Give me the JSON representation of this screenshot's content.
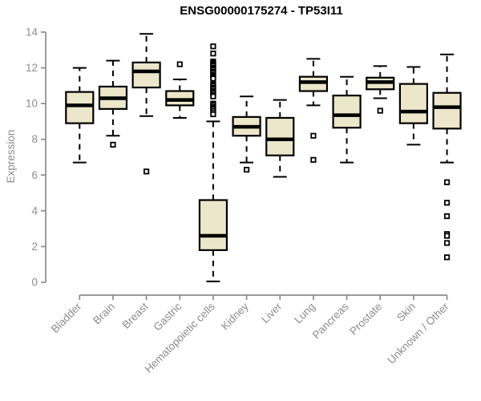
{
  "chart_data": {
    "type": "boxplot",
    "title": "ENSG00000175274 - TP53I11",
    "xlabel": "",
    "ylabel": "Expression",
    "ylim": [
      0,
      14
    ],
    "yticks": [
      0,
      2,
      4,
      6,
      8,
      10,
      12,
      14
    ],
    "grid": false,
    "legend": "none",
    "categories": [
      "Bladder",
      "Brain",
      "Breast",
      "Gastric",
      "Hematopoietic cells",
      "Kidney",
      "Liver",
      "Lung",
      "Pancreas",
      "Prostate",
      "Skin",
      "Unknown / Other"
    ],
    "boxes": [
      {
        "category": "Bladder",
        "whisker_low": 6.7,
        "q1": 8.9,
        "median": 9.9,
        "q3": 10.65,
        "whisker_high": 12.0,
        "outliers": []
      },
      {
        "category": "Brain",
        "whisker_low": 8.2,
        "q1": 9.7,
        "median": 10.3,
        "q3": 10.95,
        "whisker_high": 12.4,
        "outliers": [
          7.7
        ]
      },
      {
        "category": "Breast",
        "whisker_low": 9.3,
        "q1": 10.9,
        "median": 11.8,
        "q3": 12.3,
        "whisker_high": 13.9,
        "outliers": [
          6.2
        ]
      },
      {
        "category": "Gastric",
        "whisker_low": 9.2,
        "q1": 9.9,
        "median": 10.2,
        "q3": 10.7,
        "whisker_high": 11.35,
        "outliers": [
          12.2
        ]
      },
      {
        "category": "Hematopoietic cells",
        "whisker_low": 0.05,
        "q1": 1.8,
        "median": 2.6,
        "q3": 4.6,
        "whisker_high": 9.0,
        "outliers": [
          13.2,
          12.8,
          12.35,
          12.3,
          12.25,
          12.2,
          12.15,
          12.1,
          12.0,
          11.95,
          11.9,
          11.8,
          11.75,
          11.7,
          11.6,
          11.55,
          11.5,
          11.45,
          11.4,
          11.1,
          11.05,
          11.0,
          10.9,
          10.85,
          10.8,
          10.7,
          10.65,
          10.6,
          10.5,
          10.45,
          10.4,
          10.0,
          9.95,
          9.9,
          9.8,
          9.75,
          9.7,
          9.6,
          9.5,
          9.4
        ]
      },
      {
        "category": "Kidney",
        "whisker_low": 6.7,
        "q1": 8.2,
        "median": 8.7,
        "q3": 9.25,
        "whisker_high": 10.4,
        "outliers": [
          6.3
        ]
      },
      {
        "category": "Liver",
        "whisker_low": 5.9,
        "q1": 7.1,
        "median": 8.0,
        "q3": 9.2,
        "whisker_high": 10.2,
        "outliers": []
      },
      {
        "category": "Lung",
        "whisker_low": 9.9,
        "q1": 10.7,
        "median": 11.2,
        "q3": 11.5,
        "whisker_high": 12.5,
        "outliers": [
          8.2,
          6.85
        ]
      },
      {
        "category": "Pancreas",
        "whisker_low": 6.7,
        "q1": 8.65,
        "median": 9.35,
        "q3": 10.45,
        "whisker_high": 11.5,
        "outliers": []
      },
      {
        "category": "Prostate",
        "whisker_low": 10.3,
        "q1": 10.8,
        "median": 11.2,
        "q3": 11.45,
        "whisker_high": 12.1,
        "outliers": [
          9.6
        ]
      },
      {
        "category": "Skin",
        "whisker_low": 7.7,
        "q1": 8.9,
        "median": 9.55,
        "q3": 11.1,
        "whisker_high": 12.05,
        "outliers": []
      },
      {
        "category": "Unknown / Other",
        "whisker_low": 6.7,
        "q1": 8.6,
        "median": 9.8,
        "q3": 10.6,
        "whisker_high": 12.75,
        "outliers": [
          5.6,
          4.45,
          3.7,
          2.7,
          2.6,
          2.2,
          1.4
        ]
      }
    ],
    "colors": {
      "box_fill": "#ECE6CA",
      "box_border": "#000000",
      "median": "#000000",
      "outlier_fill": "#FFFFFF",
      "axis": "#8C8C8C",
      "tick_label": "#8C8C8C",
      "title": "#000000",
      "background": "#FFFFFF"
    }
  }
}
